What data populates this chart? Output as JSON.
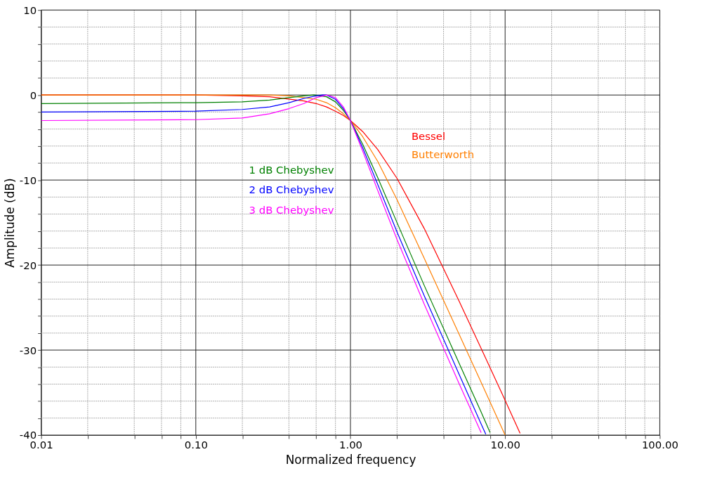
{
  "chart_data": {
    "type": "line",
    "xlabel": "Normalized frequency",
    "ylabel": "Amplitude (dB)",
    "log": "x",
    "grid": true,
    "line_style": "solid",
    "marker": "none",
    "xlim": [
      0.01,
      100
    ],
    "ylim": [
      -40,
      10
    ],
    "xticks": [
      {
        "value": 0.01,
        "label": "0.01"
      },
      {
        "value": 0.02,
        "label": null
      },
      {
        "value": 0.04,
        "label": null
      },
      {
        "value": 0.06,
        "label": null
      },
      {
        "value": 0.08,
        "label": null
      },
      {
        "value": 0.1,
        "label": "0.10"
      },
      {
        "value": 0.2,
        "label": null
      },
      {
        "value": 0.4,
        "label": null
      },
      {
        "value": 0.6,
        "label": null
      },
      {
        "value": 0.8,
        "label": null
      },
      {
        "value": 1,
        "label": "1.00"
      },
      {
        "value": 2,
        "label": null
      },
      {
        "value": 4,
        "label": null
      },
      {
        "value": 6,
        "label": null
      },
      {
        "value": 8,
        "label": null
      },
      {
        "value": 10,
        "label": "10.00"
      },
      {
        "value": 20,
        "label": null
      },
      {
        "value": 40,
        "label": null
      },
      {
        "value": 60,
        "label": null
      },
      {
        "value": 80,
        "label": null
      },
      {
        "value": 100,
        "label": "100.00"
      }
    ],
    "yticks": [
      -40,
      {
        "value": -38,
        "label": null
      },
      {
        "value": -36,
        "label": null
      },
      {
        "value": -34,
        "label": null
      },
      {
        "value": -32,
        "label": null
      },
      -30,
      {
        "value": -28,
        "label": null
      },
      {
        "value": -26,
        "label": null
      },
      {
        "value": -24,
        "label": null
      },
      {
        "value": -22,
        "label": null
      },
      -20,
      {
        "value": -18,
        "label": null
      },
      {
        "value": -16,
        "label": null
      },
      {
        "value": -14,
        "label": null
      },
      {
        "value": -12,
        "label": null
      },
      -10,
      {
        "value": -8,
        "label": null
      },
      {
        "value": -6,
        "label": null
      },
      {
        "value": -4,
        "label": null
      },
      {
        "value": -2,
        "label": null
      },
      0,
      {
        "value": 2,
        "label": null
      },
      {
        "value": 4,
        "label": null
      },
      {
        "value": 6,
        "label": null
      },
      {
        "value": 8,
        "label": null
      },
      10
    ],
    "series": [
      {
        "name": "Bessel",
        "color": "#ff0000",
        "x": [
          0.01,
          0.1,
          0.2,
          0.3,
          0.5,
          0.6,
          0.7,
          0.8,
          0.9,
          1,
          1.2,
          1.5,
          2,
          3,
          5,
          7,
          10,
          12.5
        ],
        "values": [
          0,
          0,
          -0.1,
          -0.2,
          -0.7,
          -1,
          -1.4,
          -1.9,
          -2.4,
          -3,
          -4.3,
          -6.4,
          -9.8,
          -15.7,
          -24.1,
          -29.8,
          -35.9,
          -39.8
        ]
      },
      {
        "name": "Butterworth",
        "color": "#ff7f00",
        "x": [
          0.01,
          0.1,
          0.2,
          0.3,
          0.4,
          0.5,
          0.6,
          0.7,
          0.8,
          0.9,
          1,
          1.2,
          1.5,
          2,
          3,
          5,
          7,
          10
        ],
        "values": [
          0,
          0,
          0,
          0,
          -0.1,
          -0.3,
          -0.5,
          -0.9,
          -1.5,
          -2.2,
          -3,
          -4.9,
          -7.8,
          -12.3,
          -19.2,
          -28,
          -33.8,
          -40
        ]
      },
      {
        "name": "1 dB Chebyshev",
        "color": "#008000",
        "x": [
          0.01,
          0.1,
          0.2,
          0.3,
          0.4,
          0.5,
          0.58,
          0.7,
          0.8,
          0.9,
          1,
          1.2,
          1.5,
          2,
          3,
          5,
          7,
          8
        ],
        "values": [
          -1,
          -0.9,
          -0.8,
          -0.6,
          -0.3,
          -0.1,
          0,
          -0.2,
          -0.8,
          -1.8,
          -3,
          -5.8,
          -9.7,
          -15,
          -22.4,
          -31.4,
          -37.3,
          -39.7
        ]
      },
      {
        "name": "2 dB Chebyshev",
        "color": "#0000ff",
        "x": [
          0.01,
          0.1,
          0.2,
          0.3,
          0.4,
          0.5,
          0.6,
          0.66,
          0.7,
          0.8,
          0.9,
          1,
          1.2,
          1.5,
          2,
          3,
          5,
          7,
          7.5
        ],
        "values": [
          -2,
          -1.9,
          -1.7,
          -1.4,
          -0.9,
          -0.4,
          -0.1,
          0,
          0,
          -0.5,
          -1.6,
          -3,
          -6.2,
          -10.5,
          -16.1,
          -23.6,
          -32.7,
          -38.7,
          -39.9
        ]
      },
      {
        "name": "3 dB Chebyshev",
        "color": "#ff00ff",
        "x": [
          0.01,
          0.1,
          0.2,
          0.3,
          0.4,
          0.5,
          0.6,
          0.707,
          0.8,
          0.9,
          1,
          1.2,
          1.5,
          2,
          3,
          5,
          7
        ],
        "values": [
          -3,
          -2.9,
          -2.7,
          -2.2,
          -1.6,
          -1,
          -0.3,
          0,
          -0.3,
          -1.4,
          -3,
          -6.6,
          -11.2,
          -17,
          -24.6,
          -33.8,
          -39.7
        ]
      }
    ]
  }
}
